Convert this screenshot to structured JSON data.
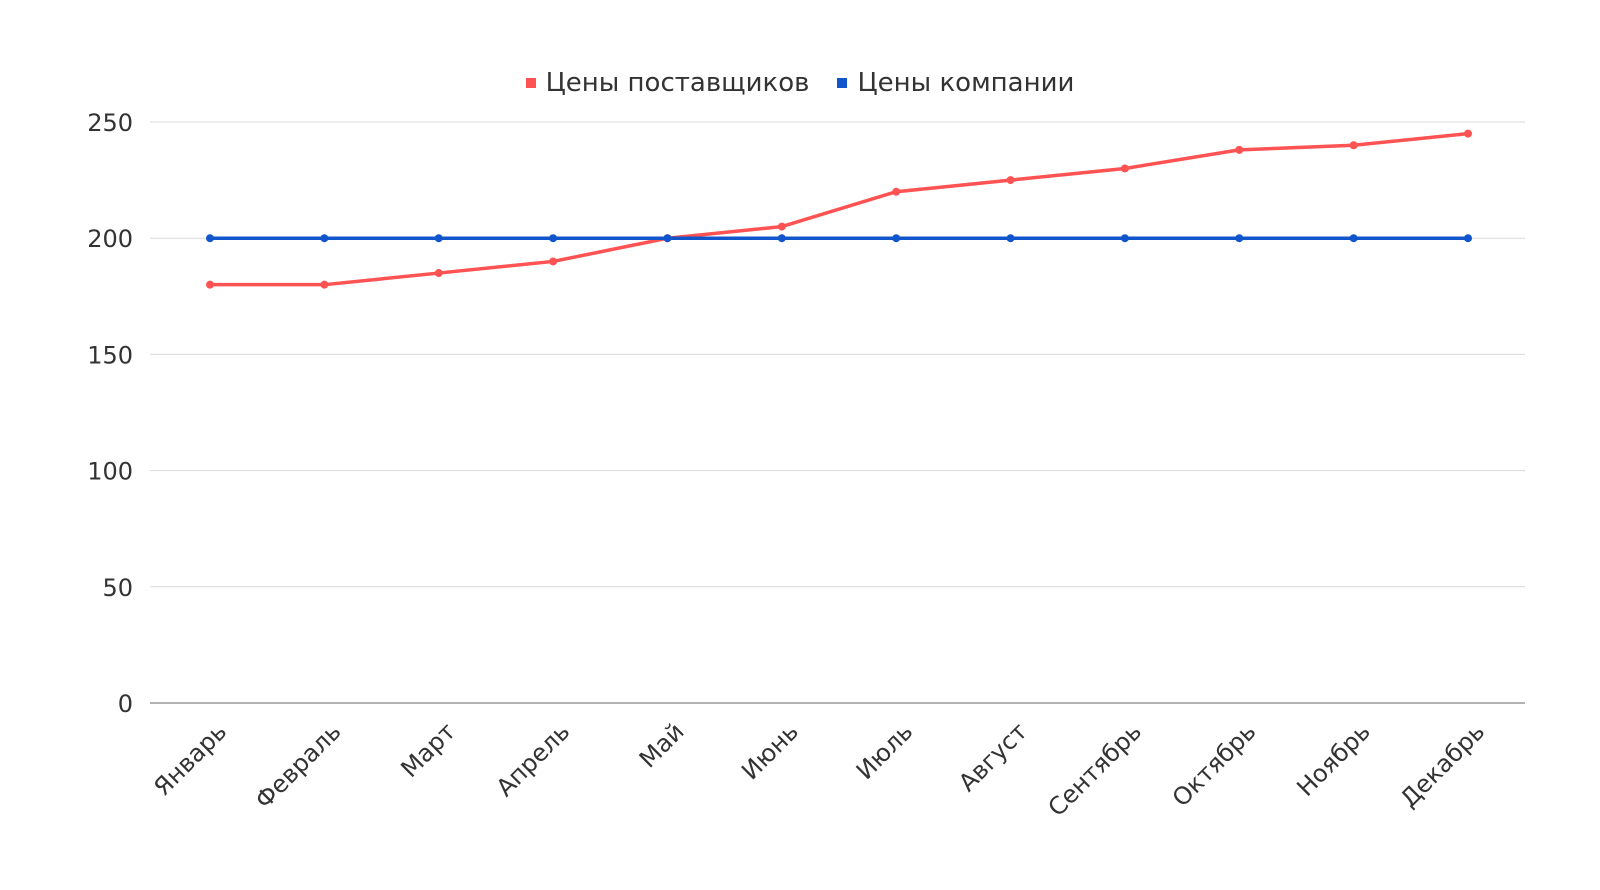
{
  "chart_data": {
    "type": "line",
    "categories": [
      "Январь",
      "Февраль",
      "Март",
      "Апрель",
      "Май",
      "Июнь",
      "Июль",
      "Август",
      "Сентябрь",
      "Октябрь",
      "Ноябрь",
      "Декабрь"
    ],
    "series": [
      {
        "name": "Цены поставщиков",
        "color": "#ff5252",
        "values": [
          180,
          180,
          185,
          190,
          200,
          205,
          220,
          225,
          230,
          238,
          240,
          245
        ]
      },
      {
        "name": "Цены компании",
        "color": "#1155cc",
        "values": [
          200,
          200,
          200,
          200,
          200,
          200,
          200,
          200,
          200,
          200,
          200,
          200
        ]
      }
    ],
    "yticks": [
      "0",
      "50",
      "100",
      "150",
      "200",
      "250"
    ],
    "ylim": [
      0,
      250
    ],
    "grid": true,
    "legend_position": "top-center",
    "title": "",
    "xlabel": "",
    "ylabel": ""
  }
}
